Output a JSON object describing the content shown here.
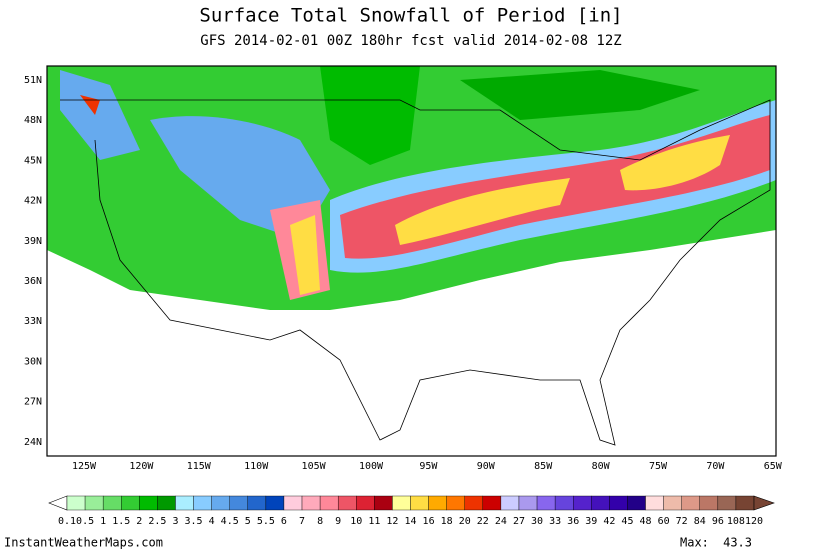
{
  "header": {
    "title": "Surface Total Snowfall of Period [in]",
    "subtitle": "GFS 2014-02-01 00Z 180hr fcst valid 2014-02-08 12Z"
  },
  "map": {
    "lat_labels": [
      "51N",
      "48N",
      "45N",
      "42N",
      "39N",
      "36N",
      "33N",
      "30N",
      "27N",
      "24N"
    ],
    "lon_labels": [
      "125W",
      "120W",
      "115W",
      "110W",
      "105W",
      "100W",
      "95W",
      "90W",
      "85W",
      "80W",
      "75W",
      "70W",
      "65W"
    ]
  },
  "colorbar": {
    "levels": [
      0.1,
      0.5,
      1,
      1.5,
      2,
      2.5,
      3,
      3.5,
      4,
      4.5,
      5,
      5.5,
      6,
      7,
      8,
      9,
      10,
      11,
      12,
      14,
      16,
      18,
      20,
      22,
      24,
      27,
      30,
      33,
      36,
      39,
      42,
      45,
      48,
      60,
      72,
      84,
      96,
      108,
      120
    ],
    "colors": [
      "#ccffcc",
      "#99ee99",
      "#66dd66",
      "#33cc33",
      "#00bb00",
      "#009900",
      "#aaeeff",
      "#88ccff",
      "#66aaee",
      "#4488dd",
      "#2266cc",
      "#0044bb",
      "#ffccdd",
      "#ffaabb",
      "#ff8899",
      "#ee5566",
      "#dd2233",
      "#aa0011",
      "#ffff99",
      "#ffdd44",
      "#ffaa00",
      "#ff7700",
      "#ee3300",
      "#cc0000",
      "#ccccff",
      "#aa99ee",
      "#8866ee",
      "#6644dd",
      "#5522cc",
      "#4411bb",
      "#3300aa",
      "#220088",
      "#ffdddd",
      "#eebbaa",
      "#dd9988",
      "#bb7766",
      "#996655",
      "#774433"
    ]
  },
  "footer": {
    "site": "InstantWeatherMaps.com",
    "max_label": "Max:",
    "max_value": 43.3
  }
}
